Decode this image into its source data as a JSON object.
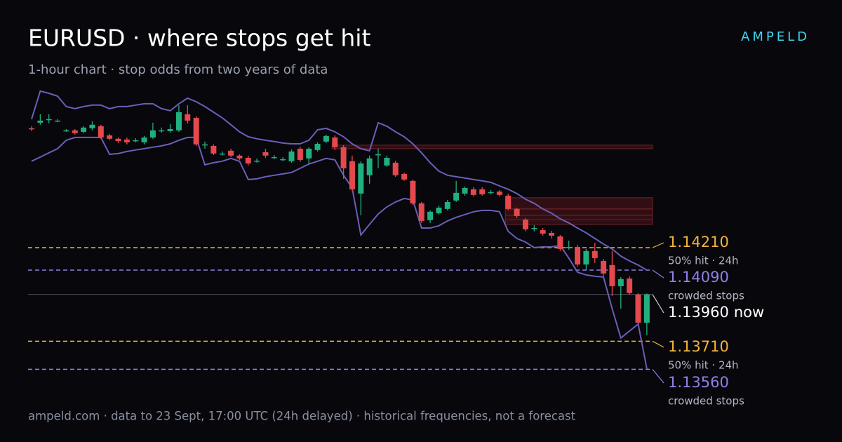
{
  "header": {
    "title": "EURUSD · where stops get hit",
    "subtitle": "1-hour chart · stop odds from two years of data",
    "brand": "AMPELD"
  },
  "footer": "ampeld.com · data to 23 Sept, 17:00 UTC (24h delayed) · historical frequencies, not a forecast",
  "chart_data": {
    "type": "candlestick",
    "ylim": [
      1.1355,
      1.1505
    ],
    "up_color": "#20b07e",
    "down_color": "#e5484d",
    "band_color": "#6a5fb8",
    "open": [
      1.14848,
      1.14878,
      1.14893,
      1.14889,
      1.14837,
      1.14837,
      1.14829,
      1.14848,
      1.14859,
      1.1481,
      1.14792,
      1.14788,
      1.14784,
      1.14773,
      1.14799,
      1.14837,
      1.14833,
      1.14837,
      1.14923,
      1.14904,
      1.14762,
      1.14754,
      1.14713,
      1.14728,
      1.14702,
      1.1469,
      1.14675,
      1.1472,
      1.14694,
      1.14683,
      1.14672,
      1.14739,
      1.14687,
      1.14732,
      1.14777,
      1.14799,
      1.14747,
      1.14672,
      1.14499,
      1.14597,
      1.14709,
      1.14649,
      1.14664,
      1.14604,
      1.14567,
      1.14447,
      1.14357,
      1.14394,
      1.14417,
      1.14462,
      1.14499,
      1.14522,
      1.14522,
      1.14507,
      1.1451,
      1.14488,
      1.14417,
      1.1436,
      1.14315,
      1.14304,
      1.14289,
      1.1427,
      1.14214,
      1.14214,
      1.1412,
      1.14192,
      1.14139,
      1.14117,
      1.14004,
      1.14045,
      1.13959,
      1.13809
    ],
    "high": [
      1.14859,
      1.14923,
      1.14923,
      1.14897,
      1.14844,
      1.14844,
      1.14859,
      1.14885,
      1.14867,
      1.14818,
      1.14799,
      1.14799,
      1.14795,
      1.14807,
      1.14878,
      1.14852,
      1.1487,
      1.14972,
      1.14972,
      1.14912,
      1.14777,
      1.14762,
      1.14724,
      1.14739,
      1.14709,
      1.14702,
      1.14687,
      1.14739,
      1.14705,
      1.14694,
      1.14735,
      1.1475,
      1.14747,
      1.14773,
      1.14814,
      1.1481,
      1.14758,
      1.14702,
      1.14672,
      1.14702,
      1.14739,
      1.14702,
      1.14675,
      1.14612,
      1.14574,
      1.14454,
      1.14409,
      1.14435,
      1.14465,
      1.14567,
      1.14537,
      1.14533,
      1.14533,
      1.14518,
      1.14518,
      1.14499,
      1.14424,
      1.14368,
      1.1433,
      1.14315,
      1.143,
      1.14278,
      1.14248,
      1.14225,
      1.14203,
      1.14237,
      1.1415,
      1.14192,
      1.14053,
      1.14057,
      1.13967,
      1.13965
    ],
    "low": [
      1.14833,
      1.14867,
      1.14874,
      1.14882,
      1.14829,
      1.14814,
      1.14822,
      1.14837,
      1.14792,
      1.14784,
      1.14769,
      1.14762,
      1.14773,
      1.14762,
      1.14792,
      1.14825,
      1.14825,
      1.14829,
      1.14874,
      1.14754,
      1.14739,
      1.14705,
      1.14702,
      1.14694,
      1.14679,
      1.14649,
      1.14664,
      1.1469,
      1.14683,
      1.14672,
      1.14664,
      1.14668,
      1.1466,
      1.14724,
      1.14769,
      1.14732,
      1.14578,
      1.14514,
      1.14383,
      1.14552,
      1.14634,
      1.14642,
      1.14589,
      1.14567,
      1.14439,
      1.14342,
      1.14342,
      1.14387,
      1.14409,
      1.14454,
      1.14488,
      1.14484,
      1.14488,
      1.14495,
      1.14484,
      1.14409,
      1.14368,
      1.14297,
      1.14297,
      1.14274,
      1.14259,
      1.14192,
      1.14199,
      1.14109,
      1.1409,
      1.14128,
      1.14057,
      1.13952,
      1.13884,
      1.13959,
      1.13802,
      1.13742
    ],
    "close": [
      1.14844,
      1.14889,
      1.14897,
      1.14889,
      1.14837,
      1.14822,
      1.14852,
      1.14867,
      1.14799,
      1.14792,
      1.1478,
      1.14773,
      1.14784,
      1.14799,
      1.14837,
      1.14837,
      1.14844,
      1.14934,
      1.14889,
      1.14762,
      1.14762,
      1.14713,
      1.14713,
      1.14702,
      1.14687,
      1.1466,
      1.14675,
      1.14702,
      1.14694,
      1.14683,
      1.14724,
      1.14679,
      1.14739,
      1.14765,
      1.14807,
      1.14747,
      1.14634,
      1.14522,
      1.1466,
      1.14687,
      1.14709,
      1.1469,
      1.14597,
      1.14574,
      1.14447,
      1.14353,
      1.14402,
      1.14424,
      1.14454,
      1.14503,
      1.14529,
      1.14492,
      1.14495,
      1.14507,
      1.14492,
      1.14417,
      1.14379,
      1.14308,
      1.14315,
      1.14285,
      1.14274,
      1.14203,
      1.14214,
      1.1412,
      1.14192,
      1.14154,
      1.14072,
      1.14004,
      1.14042,
      1.13967,
      1.13809,
      1.1396
    ],
    "upper_band": [
      1.14897,
      1.15047,
      1.15035,
      1.1502,
      1.14964,
      1.14953,
      1.14964,
      1.14972,
      1.14972,
      1.14953,
      1.14964,
      1.14964,
      1.14972,
      1.14979,
      1.14979,
      1.14953,
      1.14942,
      1.14979,
      1.15009,
      1.1499,
      1.14964,
      1.14934,
      1.14904,
      1.14867,
      1.14829,
      1.14803,
      1.14792,
      1.14784,
      1.14777,
      1.14769,
      1.14765,
      1.14765,
      1.14784,
      1.1484,
      1.14848,
      1.14829,
      1.14803,
      1.14765,
      1.14739,
      1.14728,
      1.14878,
      1.14859,
      1.14829,
      1.14803,
      1.14765,
      1.14717,
      1.14664,
      1.14619,
      1.14597,
      1.14589,
      1.14582,
      1.14574,
      1.14567,
      1.14559,
      1.1454,
      1.14522,
      1.14499,
      1.14469,
      1.14447,
      1.14417,
      1.14394,
      1.14364,
      1.14342,
      1.14315,
      1.14289,
      1.14259,
      1.14229,
      1.14203,
      1.14165,
      1.14139,
      1.14117,
      1.1409
    ],
    "lower_band": [
      1.14672,
      1.14694,
      1.14717,
      1.14739,
      1.14784,
      1.14799,
      1.14799,
      1.14799,
      1.14799,
      1.14709,
      1.14713,
      1.14724,
      1.14732,
      1.14739,
      1.14747,
      1.14754,
      1.14765,
      1.14784,
      1.14799,
      1.14799,
      1.14653,
      1.14664,
      1.14672,
      1.14687,
      1.14672,
      1.14574,
      1.14578,
      1.14589,
      1.14597,
      1.14604,
      1.14612,
      1.14634,
      1.14657,
      1.14672,
      1.14687,
      1.14679,
      1.14597,
      1.14529,
      1.14278,
      1.14334,
      1.1439,
      1.14428,
      1.14454,
      1.14473,
      1.14465,
      1.14315,
      1.14315,
      1.14327,
      1.14353,
      1.14372,
      1.14387,
      1.14402,
      1.14409,
      1.14409,
      1.14402,
      1.14297,
      1.14259,
      1.1424,
      1.1421,
      1.14214,
      1.14214,
      1.14222,
      1.14154,
      1.14079,
      1.14064,
      1.14057,
      1.14053,
      1.13884,
      1.13727,
      1.13764,
      1.13802,
      1.13562
    ],
    "zones": [
      {
        "from": 35,
        "low": 1.14739,
        "high": 1.14758
      },
      {
        "from": 55,
        "low": 1.14417,
        "high": 1.14477
      },
      {
        "from": 55,
        "low": 1.14383,
        "high": 1.14417
      },
      {
        "from": 55,
        "low": 1.1436,
        "high": 1.14383
      },
      {
        "from": 55,
        "low": 1.14334,
        "high": 1.1436
      }
    ],
    "levels": [
      {
        "price": 1.1421,
        "label": "1.14210",
        "note": "50% hit · 24h",
        "color": "#f2b33d",
        "dashed": true
      },
      {
        "price": 1.1409,
        "label": "1.14090",
        "note": "crowded stops",
        "color": "#8f80e6",
        "dashed": true
      },
      {
        "price": 1.1396,
        "label": "1.13960",
        "note": "now",
        "color": "#ffffff",
        "dashed": false
      },
      {
        "price": 1.1371,
        "label": "1.13710",
        "note": "50% hit · 24h",
        "color": "#f2b33d",
        "dashed": true
      },
      {
        "price": 1.1356,
        "label": "1.13560",
        "note": "crowded stops",
        "color": "#8f80e6",
        "dashed": true
      }
    ]
  }
}
